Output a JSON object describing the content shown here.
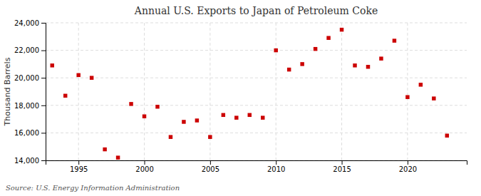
{
  "chart_data": {
    "type": "scatter",
    "title": "Annual U.S. Exports to Japan of Petroleum Coke",
    "ylabel": "Thousand Barrels",
    "annotations": [
      "Source: U.S. Energy Information Administration"
    ],
    "x": [
      1993,
      1994,
      1995,
      1996,
      1997,
      1998,
      1999,
      2000,
      2001,
      2002,
      2003,
      2004,
      2005,
      2006,
      2007,
      2008,
      2009,
      2010,
      2011,
      2012,
      2013,
      2014,
      2015,
      2016,
      2017,
      2018,
      2019,
      2020,
      2021,
      2022,
      2023
    ],
    "values": [
      20900,
      18700,
      20200,
      20000,
      14800,
      14200,
      18100,
      17200,
      17900,
      15700,
      16800,
      16900,
      15700,
      17300,
      17100,
      17300,
      17100,
      22000,
      20600,
      21000,
      22100,
      22900,
      23500,
      20900,
      20800,
      21400,
      22700,
      18600,
      19500,
      18500,
      15800
    ],
    "color": "#cc0000",
    "marker": "square",
    "xlim": [
      1992.5,
      2024.5
    ],
    "xticks": [
      1995,
      2000,
      2005,
      2010,
      2015,
      2020
    ],
    "ylim": [
      14000,
      24000
    ],
    "yticks": [
      {
        "value": 14000,
        "label": "14,000"
      },
      {
        "value": 16000,
        "label": "16,000"
      },
      {
        "value": 18000,
        "label": "18,000"
      },
      {
        "value": 20000,
        "label": "20,000"
      },
      {
        "value": 22000,
        "label": "22,000"
      },
      {
        "value": 24000,
        "label": "24,000"
      }
    ],
    "grid": true
  }
}
